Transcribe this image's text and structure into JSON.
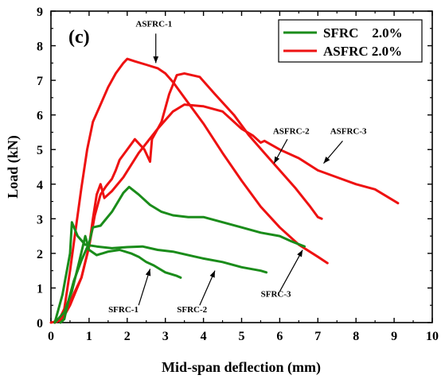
{
  "chart_data": {
    "type": "line",
    "panel_label": "(c)",
    "xlabel": "Mid-span deflection (mm)",
    "ylabel": "Load (kN)",
    "xlim": [
      0,
      10
    ],
    "ylim": [
      0,
      9
    ],
    "xticks": [
      "0",
      "1",
      "2",
      "3",
      "4",
      "5",
      "6",
      "7",
      "8",
      "9",
      "10"
    ],
    "yticks": [
      "0",
      "1",
      "2",
      "3",
      "4",
      "5",
      "6",
      "7",
      "8",
      "9"
    ],
    "grid": false,
    "legend_position": "top-right",
    "legend": [
      {
        "label": "SFRC    2.0%",
        "color": "#1a8c1a"
      },
      {
        "label": "ASFRC 2.0%",
        "color": "#ee1111"
      }
    ],
    "series": [
      {
        "group": "ASFRC",
        "color": "#ee1111",
        "points": [
          [
            0,
            0
          ],
          [
            0.2,
            0.05
          ],
          [
            0.35,
            0.4
          ],
          [
            0.5,
            1.5
          ],
          [
            0.65,
            2.7
          ],
          [
            0.8,
            3.9
          ],
          [
            0.95,
            5.0
          ],
          [
            1.1,
            5.8
          ],
          [
            1.3,
            6.3
          ],
          [
            1.5,
            6.8
          ],
          [
            1.7,
            7.2
          ],
          [
            1.9,
            7.5
          ],
          [
            2.0,
            7.62
          ],
          [
            2.2,
            7.55
          ],
          [
            2.5,
            7.45
          ],
          [
            2.8,
            7.35
          ],
          [
            3.0,
            7.2
          ],
          [
            3.2,
            6.95
          ],
          [
            3.5,
            6.5
          ],
          [
            4.0,
            5.75
          ],
          [
            4.5,
            4.9
          ],
          [
            5.0,
            4.1
          ],
          [
            5.5,
            3.35
          ],
          [
            6.0,
            2.75
          ],
          [
            6.5,
            2.25
          ],
          [
            7.0,
            1.9
          ],
          [
            7.25,
            1.72
          ]
        ]
      },
      {
        "group": "ASFRC",
        "color": "#ee1111",
        "points": [
          [
            0.1,
            0
          ],
          [
            0.3,
            0.1
          ],
          [
            0.5,
            0.5
          ],
          [
            0.8,
            1.3
          ],
          [
            1.0,
            2.2
          ],
          [
            1.15,
            3.1
          ],
          [
            1.3,
            3.7
          ],
          [
            1.45,
            3.95
          ],
          [
            1.6,
            4.15
          ],
          [
            1.7,
            4.4
          ],
          [
            1.8,
            4.7
          ],
          [
            2.0,
            5.0
          ],
          [
            2.2,
            5.3
          ],
          [
            2.45,
            5.0
          ],
          [
            2.6,
            4.65
          ],
          [
            2.65,
            5.3
          ],
          [
            2.9,
            5.8
          ],
          [
            3.1,
            6.6
          ],
          [
            3.3,
            7.15
          ],
          [
            3.5,
            7.2
          ],
          [
            3.9,
            7.1
          ],
          [
            4.3,
            6.6
          ],
          [
            4.8,
            6.0
          ],
          [
            5.2,
            5.4
          ],
          [
            5.6,
            4.9
          ],
          [
            6.0,
            4.4
          ],
          [
            6.4,
            3.9
          ],
          [
            6.8,
            3.35
          ],
          [
            7.0,
            3.05
          ],
          [
            7.1,
            3.0
          ]
        ]
      },
      {
        "group": "ASFRC",
        "color": "#ee1111",
        "points": [
          [
            0.1,
            0
          ],
          [
            0.3,
            0.2
          ],
          [
            0.5,
            0.6
          ],
          [
            0.8,
            1.3
          ],
          [
            1.0,
            2.2
          ],
          [
            1.1,
            3.0
          ],
          [
            1.2,
            3.7
          ],
          [
            1.3,
            4.0
          ],
          [
            1.4,
            3.6
          ],
          [
            1.6,
            3.8
          ],
          [
            1.9,
            4.2
          ],
          [
            2.3,
            4.9
          ],
          [
            2.8,
            5.6
          ],
          [
            3.2,
            6.1
          ],
          [
            3.5,
            6.3
          ],
          [
            4.0,
            6.25
          ],
          [
            4.5,
            6.1
          ],
          [
            5.0,
            5.6
          ],
          [
            5.3,
            5.4
          ],
          [
            5.5,
            5.2
          ],
          [
            5.6,
            5.25
          ],
          [
            6.0,
            5.0
          ],
          [
            6.5,
            4.75
          ],
          [
            7.0,
            4.4
          ],
          [
            7.5,
            4.2
          ],
          [
            8.0,
            4.0
          ],
          [
            8.5,
            3.85
          ],
          [
            9.1,
            3.45
          ]
        ]
      },
      {
        "group": "SFRC",
        "color": "#1a8c1a",
        "points": [
          [
            0.25,
            0
          ],
          [
            0.35,
            0.1
          ],
          [
            0.45,
            0.6
          ],
          [
            0.6,
            1.2
          ],
          [
            0.8,
            1.8
          ],
          [
            1.0,
            2.3
          ],
          [
            1.1,
            2.75
          ],
          [
            1.3,
            2.8
          ],
          [
            1.6,
            3.2
          ],
          [
            1.9,
            3.75
          ],
          [
            2.05,
            3.92
          ],
          [
            2.3,
            3.7
          ],
          [
            2.6,
            3.4
          ],
          [
            2.9,
            3.2
          ],
          [
            3.2,
            3.1
          ],
          [
            3.6,
            3.05
          ],
          [
            4.0,
            3.05
          ],
          [
            4.5,
            2.9
          ],
          [
            5.0,
            2.75
          ],
          [
            5.5,
            2.6
          ],
          [
            6.0,
            2.5
          ],
          [
            6.3,
            2.35
          ],
          [
            6.65,
            2.2
          ]
        ]
      },
      {
        "group": "SFRC",
        "color": "#1a8c1a",
        "points": [
          [
            0.1,
            0
          ],
          [
            0.3,
            0.8
          ],
          [
            0.5,
            2.0
          ],
          [
            0.55,
            2.9
          ],
          [
            0.7,
            2.5
          ],
          [
            0.9,
            2.25
          ],
          [
            1.2,
            2.2
          ],
          [
            1.6,
            2.15
          ],
          [
            2.0,
            2.18
          ],
          [
            2.4,
            2.2
          ],
          [
            2.8,
            2.1
          ],
          [
            3.2,
            2.05
          ],
          [
            3.6,
            1.95
          ],
          [
            4.0,
            1.85
          ],
          [
            4.5,
            1.75
          ],
          [
            5.0,
            1.6
          ],
          [
            5.5,
            1.5
          ],
          [
            5.65,
            1.45
          ]
        ]
      },
      {
        "group": "SFRC",
        "color": "#1a8c1a",
        "points": [
          [
            0.1,
            0
          ],
          [
            0.35,
            0.3
          ],
          [
            0.55,
            0.9
          ],
          [
            0.75,
            1.8
          ],
          [
            0.9,
            2.5
          ],
          [
            1.0,
            2.1
          ],
          [
            1.2,
            1.95
          ],
          [
            1.5,
            2.05
          ],
          [
            1.8,
            2.1
          ],
          [
            2.1,
            2.0
          ],
          [
            2.3,
            1.9
          ],
          [
            2.5,
            1.75
          ],
          [
            2.7,
            1.65
          ],
          [
            2.85,
            1.55
          ],
          [
            3.0,
            1.45
          ],
          [
            3.3,
            1.35
          ],
          [
            3.4,
            1.3
          ]
        ]
      }
    ],
    "annotations": [
      {
        "text": "ASFRC-1",
        "tx": 2.7,
        "ty": 8.55,
        "ax": 2.75,
        "ay": 8.35,
        "px": 2.75,
        "py": 7.5
      },
      {
        "text": "ASFRC-2",
        "tx": 6.3,
        "ty": 5.45,
        "ax": 6.2,
        "ay": 5.3,
        "px": 5.85,
        "py": 4.6
      },
      {
        "text": "ASFRC-3",
        "tx": 7.8,
        "ty": 5.45,
        "ax": 7.65,
        "ay": 5.25,
        "px": 7.15,
        "py": 4.6
      },
      {
        "text": "SFRC-1",
        "tx": 1.9,
        "ty": 0.3,
        "ax": 2.3,
        "ay": 0.5,
        "px": 2.6,
        "py": 1.55
      },
      {
        "text": "SFRC-2",
        "tx": 3.7,
        "ty": 0.3,
        "ax": 3.9,
        "ay": 0.5,
        "px": 4.3,
        "py": 1.5
      },
      {
        "text": "SFRC-3",
        "tx": 5.9,
        "ty": 0.75,
        "ax": 6.0,
        "ay": 0.9,
        "px": 6.6,
        "py": 2.1
      }
    ]
  }
}
